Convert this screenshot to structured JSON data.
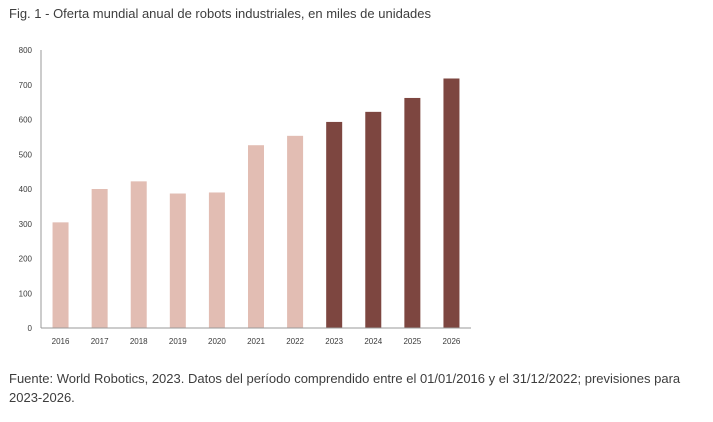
{
  "figure": {
    "title": "Fig. 1 - Oferta mundial anual de robots industriales, en miles de unidades",
    "source_note": "Fuente: World Robotics, 2023. Datos del período comprendido entre el 01/01/2016 y el 31/12/2022; previsiones para 2023-2026."
  },
  "chart_data": {
    "type": "bar",
    "categories": [
      "2016",
      "2017",
      "2018",
      "2019",
      "2020",
      "2021",
      "2022",
      "2023",
      "2024",
      "2025",
      "2026"
    ],
    "values": [
      304,
      400,
      422,
      387,
      390,
      526,
      553,
      593,
      622,
      662,
      718
    ],
    "forecast": [
      false,
      false,
      false,
      false,
      false,
      false,
      false,
      true,
      true,
      true,
      true
    ],
    "colors": {
      "historical": "#e2bdb3",
      "forecast": "#7d4640",
      "axis": "#999999"
    },
    "ylim": [
      0,
      800
    ],
    "yticks": [
      0,
      100,
      200,
      300,
      400,
      500,
      600,
      700,
      800
    ],
    "grid": false,
    "xlabel": "",
    "ylabel": ""
  }
}
